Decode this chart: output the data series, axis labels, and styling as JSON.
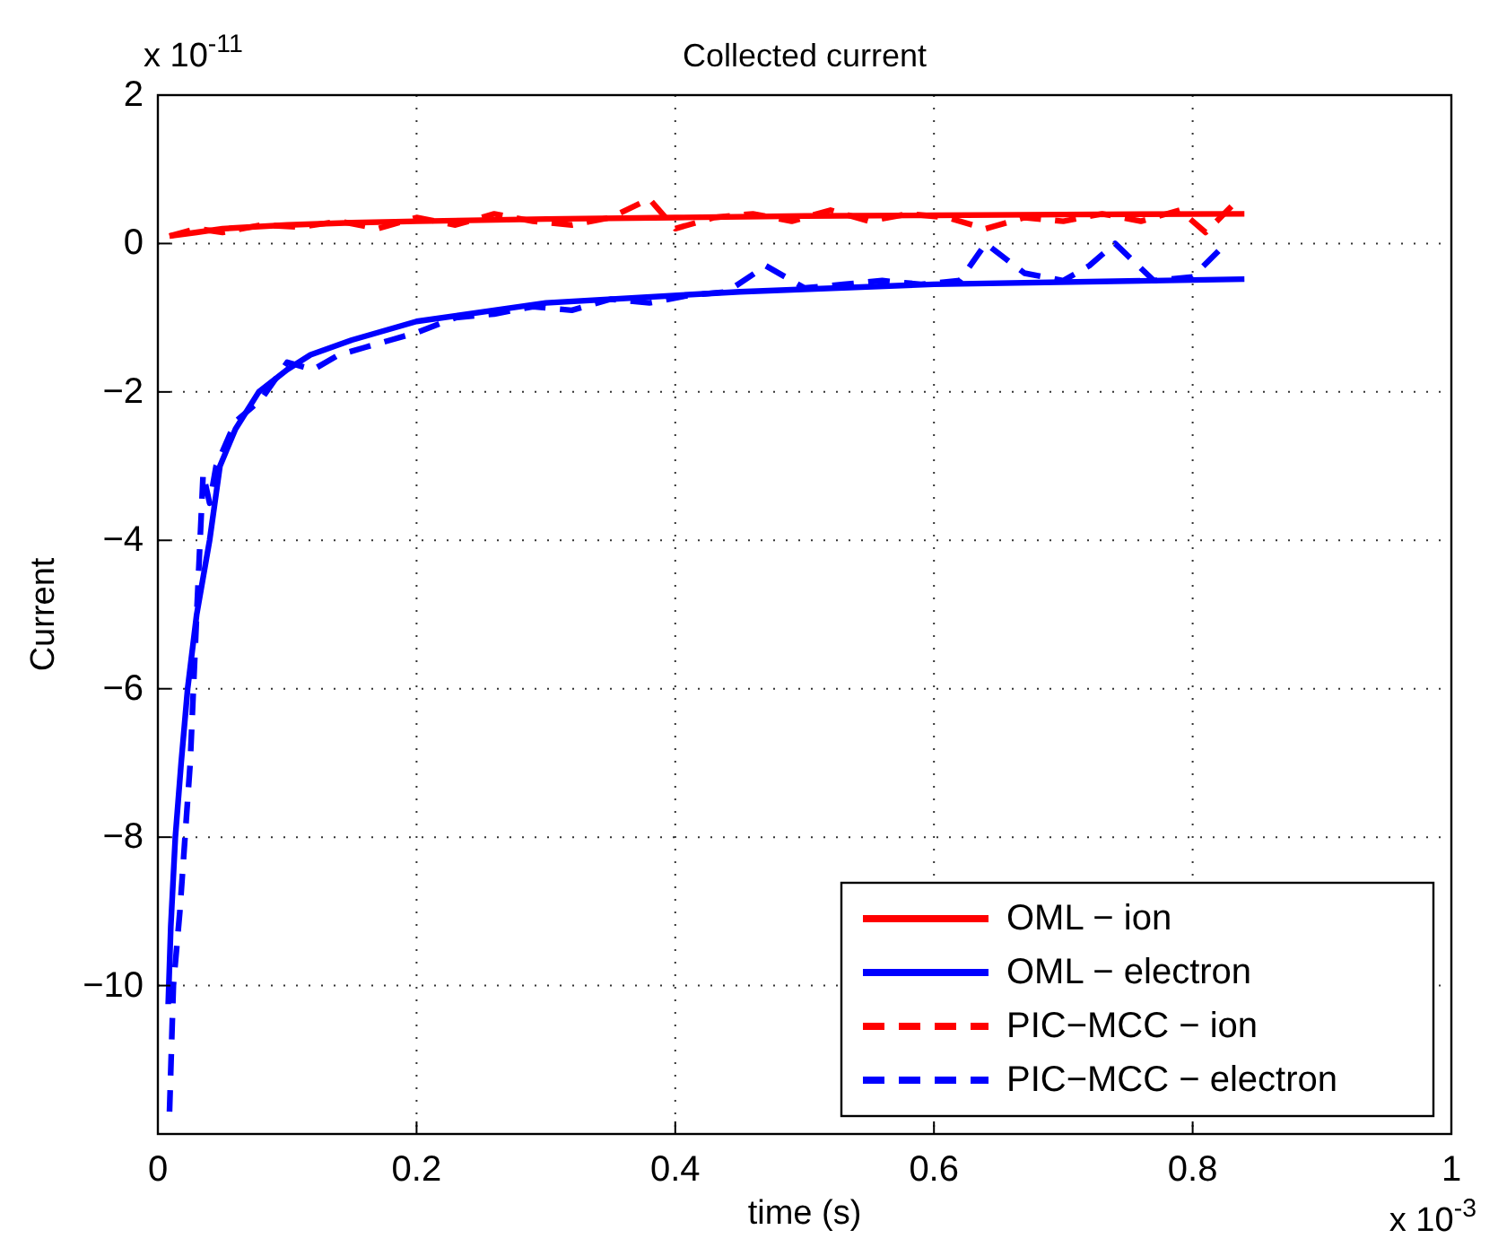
{
  "chart_data": {
    "type": "line",
    "title": "Collected current",
    "xlabel": "time (s)",
    "ylabel": "Current",
    "annotations": [
      "x 10$^{-11}$",
      "x 10$^{-3}$"
    ],
    "xlim": [
      0,
      1
    ],
    "xticks": [
      0,
      0.2,
      0.4,
      0.6,
      0.8,
      1
    ],
    "ylim": [
      -12,
      2
    ],
    "yticks": [
      -10,
      -8,
      -6,
      -4,
      -2,
      0,
      2
    ],
    "grid": true,
    "legend": "bottom right",
    "series": [
      {
        "name": "OML − ion",
        "color": "#ff0000",
        "line_style": "solid",
        "x": [
          0.009,
          0.03,
          0.05,
          0.1,
          0.15,
          0.2,
          0.3,
          0.4,
          0.5,
          0.6,
          0.7,
          0.84
        ],
        "values": [
          0.1,
          0.15,
          0.2,
          0.25,
          0.28,
          0.3,
          0.33,
          0.35,
          0.37,
          0.38,
          0.39,
          0.4
        ]
      },
      {
        "name": "OML − electron",
        "color": "#0000ff",
        "line_style": "solid",
        "x": [
          0.008,
          0.01,
          0.0135,
          0.018,
          0.023,
          0.03,
          0.04,
          0.048,
          0.06,
          0.078,
          0.1,
          0.118,
          0.15,
          0.2,
          0.3,
          0.45,
          0.6,
          0.84
        ],
        "values": [
          -10.25,
          -9.2,
          -8,
          -7,
          -6,
          -5,
          -4,
          -3,
          -2.5,
          -2,
          -1.7,
          -1.5,
          -1.3,
          -1.05,
          -0.8,
          -0.65,
          -0.55,
          -0.48
        ]
      },
      {
        "name": "PIC−MCC − ion",
        "color": "#ff0000",
        "line_style": "dashed",
        "x": [
          0.009,
          0.03,
          0.05,
          0.08,
          0.11,
          0.14,
          0.17,
          0.2,
          0.23,
          0.26,
          0.29,
          0.32,
          0.35,
          0.38,
          0.4,
          0.43,
          0.46,
          0.49,
          0.52,
          0.55,
          0.58,
          0.61,
          0.64,
          0.67,
          0.7,
          0.73,
          0.76,
          0.79,
          0.81,
          0.83
        ],
        "values": [
          0.1,
          0.2,
          0.15,
          0.25,
          0.22,
          0.3,
          0.2,
          0.35,
          0.25,
          0.4,
          0.3,
          0.25,
          0.35,
          0.6,
          0.2,
          0.35,
          0.4,
          0.3,
          0.45,
          0.3,
          0.4,
          0.35,
          0.2,
          0.35,
          0.3,
          0.4,
          0.3,
          0.45,
          0.15,
          0.5
        ]
      },
      {
        "name": "PIC−MCC − electron",
        "color": "#0000ff",
        "line_style": "dashed",
        "x": [
          0.009,
          0.012,
          0.017,
          0.021,
          0.025,
          0.03,
          0.035,
          0.04,
          0.045,
          0.06,
          0.08,
          0.1,
          0.12,
          0.14,
          0.16,
          0.18,
          0.2,
          0.23,
          0.26,
          0.29,
          0.32,
          0.35,
          0.38,
          0.41,
          0.44,
          0.47,
          0.5,
          0.53,
          0.56,
          0.59,
          0.62,
          0.64,
          0.67,
          0.7,
          0.72,
          0.74,
          0.77,
          0.8,
          0.82
        ],
        "values": [
          -11.7,
          -10,
          -9,
          -8,
          -7,
          -5,
          -3.1,
          -3.5,
          -3,
          -2.4,
          -2.1,
          -1.6,
          -1.7,
          -1.5,
          -1.4,
          -1.3,
          -1.2,
          -1,
          -0.95,
          -0.85,
          -0.9,
          -0.75,
          -0.8,
          -0.7,
          -0.65,
          -0.3,
          -0.6,
          -0.55,
          -0.5,
          -0.55,
          -0.5,
          0,
          -0.4,
          -0.5,
          -0.3,
          0,
          -0.5,
          -0.45,
          -0.1
        ]
      }
    ]
  }
}
